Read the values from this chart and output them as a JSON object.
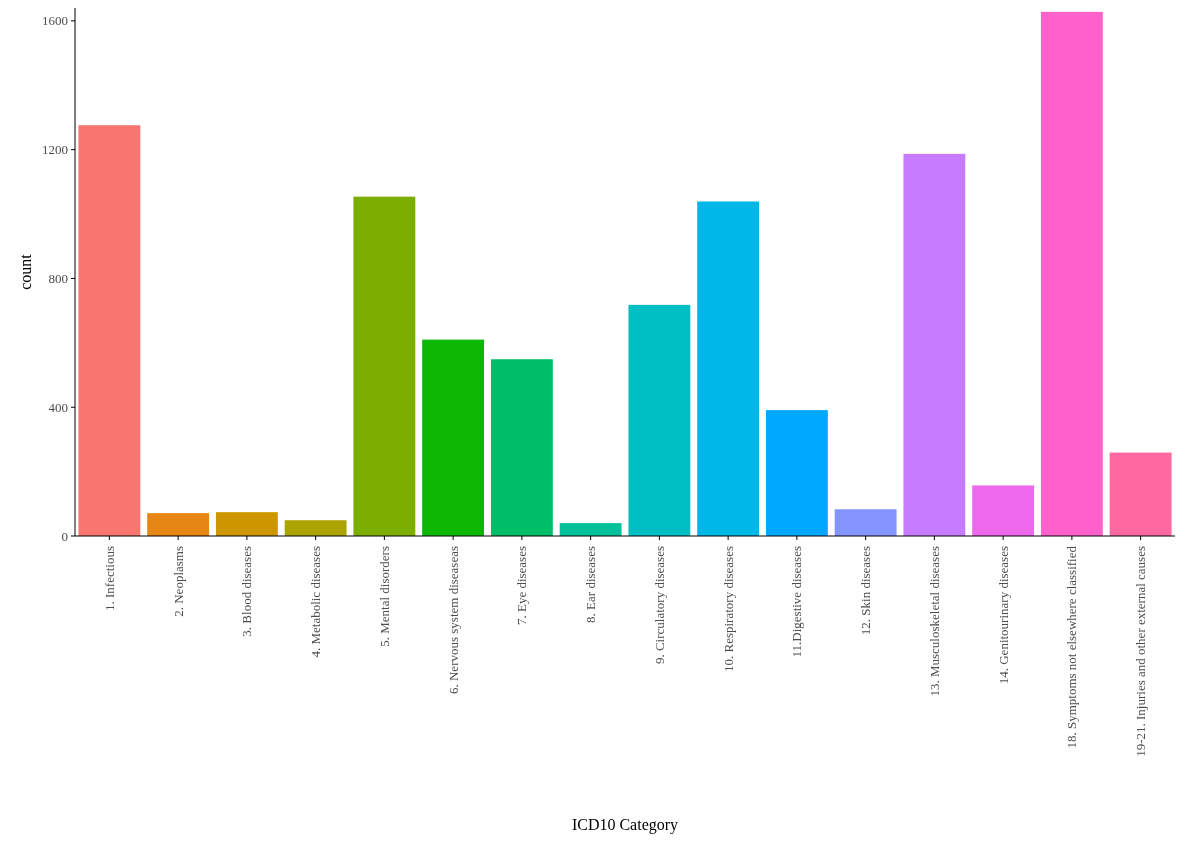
{
  "chart_data": {
    "type": "bar",
    "xlabel": "ICD10 Category",
    "ylabel": "count",
    "categories": [
      "1. Infectious",
      "2. Neoplasms",
      "3. Blood diseases",
      "4. Metabolic diseases",
      "5. Mental disorders",
      "6. Nervous system diseaseas",
      "7. Eye diseases",
      "8. Ear diseases",
      "9. Circulatory diseases",
      "10. Respiratory diseases",
      "11.Digestive diseases",
      "12. Skin diseases",
      "13. Musculoskeletal diseases",
      "14. Genitourinary diseases",
      "18. Symptoms not elsewhere classified",
      "19-21. Injuries and other external causes"
    ],
    "values": [
      1276,
      71,
      74,
      49,
      1054,
      610,
      549,
      40,
      718,
      1039,
      391,
      83,
      1187,
      157,
      1628,
      259
    ],
    "colors": [
      "#f8766d",
      "#e68613",
      "#cd9600",
      "#aba300",
      "#7cae00",
      "#0cb702",
      "#00be67",
      "#00c19a",
      "#00bfc4",
      "#00b8e7",
      "#00a9ff",
      "#8494ff",
      "#c77cff",
      "#ed68ed",
      "#ff61cc",
      "#ff68a1"
    ],
    "ylim": [
      0,
      1640
    ],
    "yticks": [
      0,
      400,
      800,
      1200,
      1600
    ],
    "grid": false
  }
}
